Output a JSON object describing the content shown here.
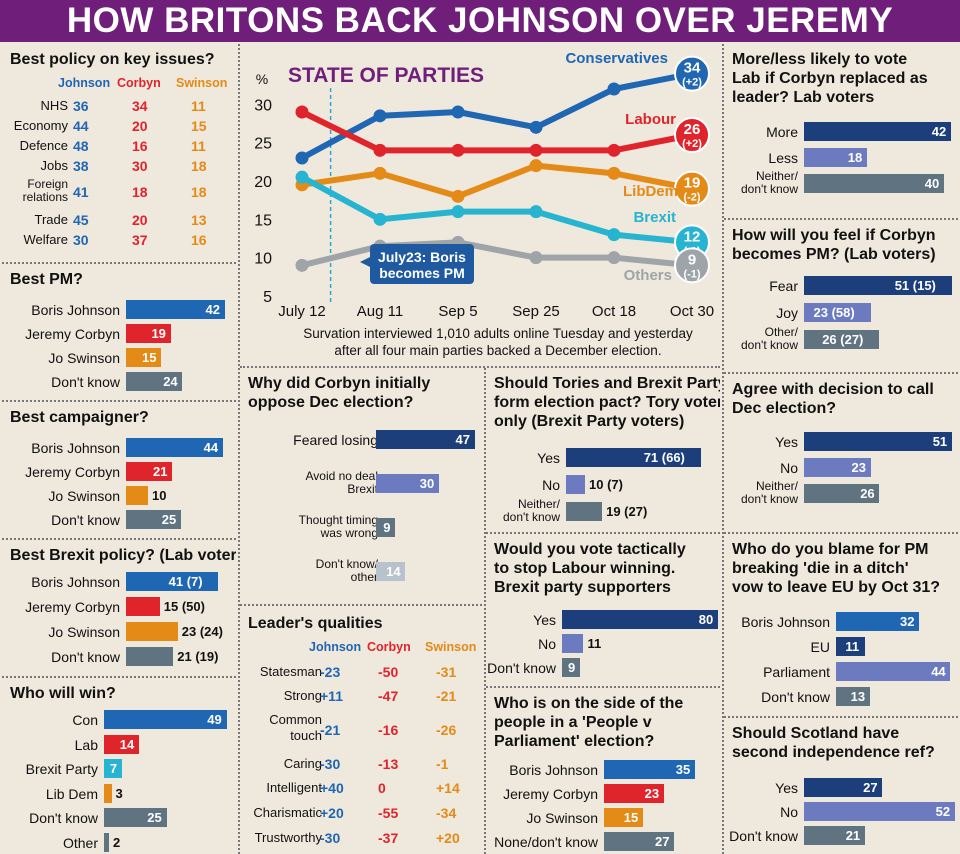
{
  "header": {
    "title": "HOW BRITONS BACK JOHNSON OVER JEREMY"
  },
  "colors": {
    "header": "#6f1f7a",
    "navy": "#1c3f7c",
    "johnson": "#1f66b3",
    "corbyn": "#e0242c",
    "swinson": "#e38a17",
    "brexit": "#26b4d0",
    "others": "#9ea4a8",
    "slate": "#5f7480",
    "purple": "#6c7bbf",
    "background": "#efe8dd"
  },
  "policy": {
    "title": "Best policy on key issues?",
    "cols": [
      "Johnson",
      "Corbyn",
      "Swinson"
    ],
    "rows": [
      {
        "label": "NHS",
        "v": [
          "36",
          "34",
          "11"
        ]
      },
      {
        "label": "Economy",
        "v": [
          "44",
          "20",
          "15"
        ]
      },
      {
        "label": "Defence",
        "v": [
          "48",
          "16",
          "11"
        ]
      },
      {
        "label": "Jobs",
        "v": [
          "38",
          "30",
          "18"
        ]
      },
      {
        "label": "Foreign relations",
        "l1": "Foreign",
        "l2": "relations",
        "v": [
          "41",
          "18",
          "18"
        ]
      },
      {
        "label": "Trade",
        "v": [
          "45",
          "20",
          "13"
        ]
      },
      {
        "label": "Welfare",
        "v": [
          "30",
          "37",
          "16"
        ]
      }
    ]
  },
  "best_pm": {
    "title": "Best PM?",
    "items": [
      {
        "label": "Boris Johnson",
        "value": 42,
        "text": "42",
        "color": "blue"
      },
      {
        "label": "Jeremy Corbyn",
        "value": 19,
        "text": "19",
        "color": "red"
      },
      {
        "label": "Jo Swinson",
        "value": 15,
        "text": "15",
        "color": "orange"
      },
      {
        "label": "Don't know",
        "value": 24,
        "text": "24",
        "color": "slate"
      }
    ]
  },
  "best_campaigner": {
    "title": "Best campaigner?",
    "items": [
      {
        "label": "Boris Johnson",
        "value": 44,
        "text": "44",
        "color": "blue"
      },
      {
        "label": "Jeremy Corbyn",
        "value": 21,
        "text": "21",
        "color": "red"
      },
      {
        "label": "Jo Swinson",
        "value": 10,
        "text": "10",
        "color": "orange"
      },
      {
        "label": "Don't know",
        "value": 25,
        "text": "25",
        "color": "slate"
      }
    ]
  },
  "best_brexit": {
    "title": "Best Brexit policy? (Lab voters)",
    "items": [
      {
        "label": "Boris Johnson",
        "value": 41,
        "text": "41",
        "extra": "(7)",
        "color": "blue"
      },
      {
        "label": "Jeremy Corbyn",
        "value": 15,
        "text": "15",
        "extra": "(50)",
        "color": "red"
      },
      {
        "label": "Jo Swinson",
        "value": 23,
        "text": "23",
        "extra": "(24)",
        "color": "orange"
      },
      {
        "label": "Don't know",
        "value": 21,
        "text": "21",
        "extra": "(19)",
        "color": "slate"
      }
    ]
  },
  "who_win": {
    "title": "Who will win?",
    "items": [
      {
        "label": "Con",
        "value": 49,
        "text": "49",
        "color": "blue"
      },
      {
        "label": "Lab",
        "value": 14,
        "text": "14",
        "color": "red"
      },
      {
        "label": "Brexit Party",
        "value": 7,
        "text": "7",
        "color": "cyan"
      },
      {
        "label": "Lib Dem",
        "value": 3,
        "text": "3",
        "color": "orange"
      },
      {
        "label": "Don't know",
        "value": 25,
        "text": "25",
        "color": "slate"
      },
      {
        "label": "Other",
        "value": 2,
        "text": "2",
        "color": "slate"
      }
    ]
  },
  "chart_data": {
    "type": "line",
    "title": "STATE OF PARTIES",
    "ylabel": "%",
    "ylim": [
      5,
      35
    ],
    "yticks": [
      "5",
      "10",
      "15",
      "20",
      "25",
      "30"
    ],
    "categories": [
      "July 12",
      "Aug 11",
      "Sep 5",
      "Sep 25",
      "Oct 18",
      "Oct 30"
    ],
    "series": [
      {
        "name": "Conservatives",
        "color": "#1f66b3",
        "values": [
          23,
          28.5,
          29,
          27,
          32,
          34
        ],
        "end": "34",
        "change": "(+2)"
      },
      {
        "name": "Labour",
        "color": "#e0242c",
        "values": [
          29,
          24,
          24,
          24,
          24,
          26
        ],
        "end": "26",
        "change": "(+2)"
      },
      {
        "name": "LibDem",
        "color": "#e38a17",
        "values": [
          19.5,
          21,
          18,
          22,
          21,
          19
        ],
        "end": "19",
        "change": "(-2)"
      },
      {
        "name": "Brexit",
        "color": "#26b4d0",
        "values": [
          20.5,
          15,
          16,
          16,
          13,
          12
        ],
        "end": "12",
        "change": "(-1)"
      },
      {
        "name": "Others",
        "color": "#9ea4a8",
        "values": [
          9,
          11.5,
          12,
          10,
          10,
          9
        ],
        "end": "9",
        "change": "(-1)"
      }
    ],
    "annotation": {
      "line1": "July23: Boris",
      "line2": "becomes PM",
      "x_date": "July 23"
    },
    "footnote": [
      "Survation interviewed 1,010 adults online Tuesday and yesterday",
      "after all four main parties backed a December election."
    ]
  },
  "corbyn_oppose": {
    "title1": "Why did Corbyn initially",
    "title2": "oppose Dec election?",
    "items": [
      {
        "l1": "Feared losing",
        "value": 47,
        "text": "47",
        "color": "navy"
      },
      {
        "l1": "Avoid no deal",
        "l2": "Brexit",
        "value": 30,
        "text": "30",
        "color": "purple"
      },
      {
        "l1": "Thought timing",
        "l2": "was wrong",
        "value": 9,
        "text": "9",
        "color": "slate"
      },
      {
        "l1": "Don't know/",
        "l2": "other",
        "value": 14,
        "text": "14",
        "color": "grey"
      }
    ]
  },
  "qualities": {
    "title": "Leader's qualities",
    "cols": [
      "Johnson",
      "Corbyn",
      "Swinson"
    ],
    "rows": [
      {
        "l1": "Statesman",
        "v": [
          "-23",
          "-50",
          "-31"
        ]
      },
      {
        "l1": "Strong",
        "v": [
          "+11",
          "-47",
          "-21"
        ]
      },
      {
        "l1": "Common",
        "l2": "touch",
        "v": [
          "-21",
          "-16",
          "-26"
        ]
      },
      {
        "l1": "Caring",
        "v": [
          "-30",
          "-13",
          "-1"
        ]
      },
      {
        "l1": "Intelligent",
        "v": [
          "+40",
          "0",
          "+14"
        ]
      },
      {
        "l1": "Charismatic",
        "v": [
          "+20",
          "-55",
          "-34"
        ]
      },
      {
        "l1": "Trustworthy",
        "v": [
          "-30",
          "-37",
          "+20"
        ]
      }
    ]
  },
  "pact": {
    "title": [
      "Should Tories and Brexit Party",
      "form election pact? Tory voters",
      "only (Brexit Party voters)"
    ],
    "items": [
      {
        "l1": "Yes",
        "value": 71,
        "text": "71",
        "extra": "(66)",
        "color": "navy"
      },
      {
        "l1": "No",
        "value": 10,
        "text": "10",
        "extra": "(7)",
        "color": "purple"
      },
      {
        "l1": "Neither/",
        "l2": "don't know",
        "value": 19,
        "text": "19",
        "extra": "(27)",
        "color": "slate"
      }
    ]
  },
  "tactical": {
    "title": [
      "Would you vote tactically",
      "to stop Labour winning.",
      "Brexit party supporters"
    ],
    "items": [
      {
        "l1": "Yes",
        "value": 80,
        "text": "80",
        "color": "navy"
      },
      {
        "l1": "No",
        "value": 11,
        "text": "11",
        "color": "purple"
      },
      {
        "l1": "Don't know",
        "value": 9,
        "text": "9",
        "color": "slate"
      }
    ]
  },
  "people_v": {
    "title": [
      "Who is on the side of the",
      "people in a 'People v",
      "Parliament' election?"
    ],
    "items": [
      {
        "label": "Boris Johnson",
        "value": 35,
        "text": "35",
        "color": "blue"
      },
      {
        "label": "Jeremy Corbyn",
        "value": 23,
        "text": "23",
        "color": "red"
      },
      {
        "label": "Jo Swinson",
        "value": 15,
        "text": "15",
        "color": "orange"
      },
      {
        "label": "None/don't know",
        "value": 27,
        "text": "27",
        "color": "slate"
      }
    ]
  },
  "lab_replace": {
    "title": [
      "More/less likely to vote",
      "Lab if Corbyn replaced as",
      "leader? Lab voters"
    ],
    "items": [
      {
        "l1": "More",
        "value": 42,
        "text": "42",
        "color": "navy"
      },
      {
        "l1": "Less",
        "value": 18,
        "text": "18",
        "color": "purple"
      },
      {
        "l1": "Neither/",
        "l2": "don't know",
        "value": 40,
        "text": "40",
        "color": "slate"
      }
    ]
  },
  "feel_pm": {
    "title": [
      "How will you feel if Corbyn",
      "becomes PM? (Lab voters)"
    ],
    "items": [
      {
        "l1": "Fear",
        "value": 51,
        "text": "51",
        "extra": "(15)",
        "color": "navy"
      },
      {
        "l1": "Joy",
        "value": 23,
        "text": "23",
        "extra": "(58)",
        "color": "purple"
      },
      {
        "l1": "Other/",
        "l2": "don't know",
        "value": 26,
        "text": "26",
        "extra": "(27)",
        "color": "slate"
      }
    ]
  },
  "dec_election": {
    "title": [
      "Agree with decision to call",
      "Dec election?"
    ],
    "items": [
      {
        "l1": "Yes",
        "value": 51,
        "text": "51",
        "color": "navy"
      },
      {
        "l1": "No",
        "value": 23,
        "text": "23",
        "color": "purple"
      },
      {
        "l1": "Neither/",
        "l2": "don't know",
        "value": 26,
        "text": "26",
        "color": "slate"
      }
    ]
  },
  "blame": {
    "title": [
      "Who do you blame for PM",
      "breaking 'die in a ditch'",
      "vow to leave EU by Oct 31?"
    ],
    "items": [
      {
        "label": "Boris Johnson",
        "value": 32,
        "text": "32",
        "color": "blue"
      },
      {
        "label": "EU",
        "value": 11,
        "text": "11",
        "color": "navy"
      },
      {
        "label": "Parliament",
        "value": 44,
        "text": "44",
        "color": "purple"
      },
      {
        "label": "Don't know",
        "value": 13,
        "text": "13",
        "color": "slate"
      }
    ]
  },
  "scotland": {
    "title": [
      "Should Scotland have",
      "second independence ref?"
    ],
    "items": [
      {
        "l1": "Yes",
        "value": 27,
        "text": "27",
        "color": "navy"
      },
      {
        "l1": "No",
        "value": 52,
        "text": "52",
        "color": "purple"
      },
      {
        "l1": "Don't know",
        "value": 21,
        "text": "21",
        "color": "slate"
      }
    ]
  }
}
